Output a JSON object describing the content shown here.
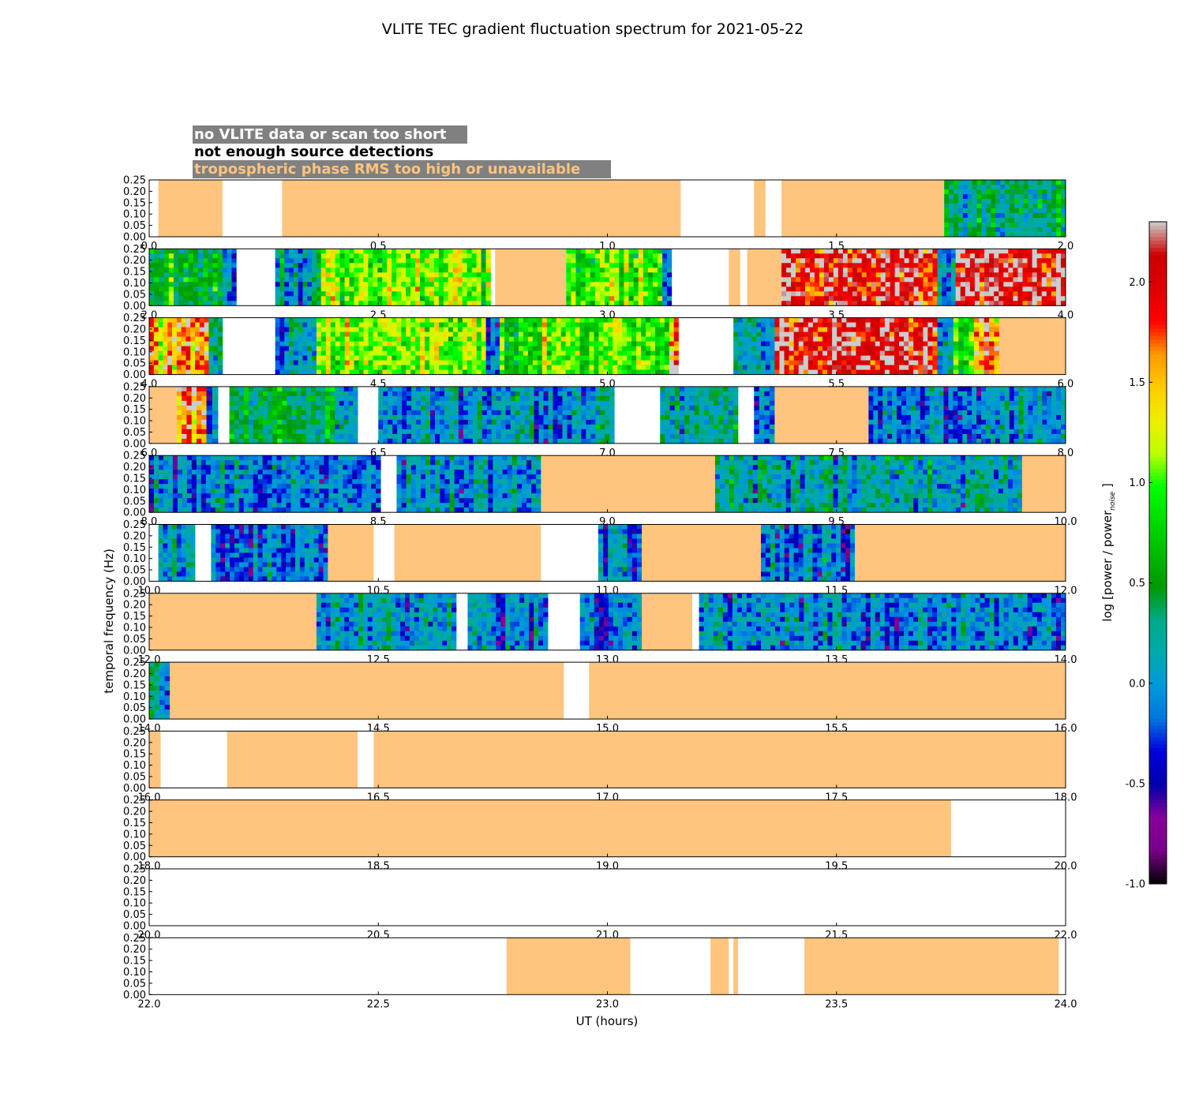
{
  "chart_data": {
    "type": "heatmap",
    "title": "VLITE TEC gradient fluctuation spectrum for 2021-05-22",
    "xlabel": "UT (hours)",
    "ylabel": "temporal frequency (Hz)",
    "colorbar": {
      "label": "log [power / power",
      "label_sub": "noise",
      "label_end": "]",
      "range": [
        -1.0,
        2.3
      ],
      "ticks": [
        "-1.0",
        "-0.5",
        "0.0",
        "0.5",
        "1.0",
        "1.5",
        "2.0"
      ],
      "tick_values": [
        -1.0,
        -0.5,
        0.0,
        0.5,
        1.0,
        1.5,
        2.0
      ],
      "colormap": "nipy_spectral"
    },
    "legend": [
      {
        "text": "no VLITE data or scan too short",
        "color": "#ffffff"
      },
      {
        "text": "not enough source detections",
        "color": "#000000"
      },
      {
        "text": "tropospheric phase RMS too high or unavailable",
        "color": "#ffc47e"
      }
    ],
    "legend_placement": "top-left",
    "legend_bg": "#808080",
    "flag_color": "#ffc47e",
    "yrange": [
      0.0,
      0.25
    ],
    "yticks": [
      "0.00",
      "0.05",
      "0.10",
      "0.15",
      "0.20",
      "0.25"
    ],
    "panels": [
      {
        "xrange": [
          0.0,
          2.0
        ],
        "xticks": [
          "0.0",
          "0.5",
          "1.0",
          "1.5",
          "2.0"
        ],
        "segments": [
          {
            "start": 0.0,
            "end": 0.02,
            "kind": "none"
          },
          {
            "start": 0.02,
            "end": 0.16,
            "kind": "tropo"
          },
          {
            "start": 0.16,
            "end": 0.29,
            "kind": "none"
          },
          {
            "start": 0.29,
            "end": 1.16,
            "kind": "tropo"
          },
          {
            "start": 1.16,
            "end": 1.32,
            "kind": "none"
          },
          {
            "start": 1.32,
            "end": 1.345,
            "kind": "tropo"
          },
          {
            "start": 1.345,
            "end": 1.38,
            "kind": "none"
          },
          {
            "start": 1.38,
            "end": 1.735,
            "kind": "tropo"
          },
          {
            "start": 1.735,
            "end": 2.0,
            "kind": "data",
            "level": 0.3
          }
        ]
      },
      {
        "xrange": [
          2.0,
          4.0
        ],
        "xticks": [
          "2.0",
          "2.5",
          "3.0",
          "3.5",
          "4.0"
        ],
        "segments": [
          {
            "start": 2.0,
            "end": 2.16,
            "kind": "data",
            "level": 0.65
          },
          {
            "start": 2.16,
            "end": 2.19,
            "kind": "data",
            "level": 0.05
          },
          {
            "start": 2.19,
            "end": 2.275,
            "kind": "none"
          },
          {
            "start": 2.275,
            "end": 2.375,
            "kind": "data",
            "level": 0.05
          },
          {
            "start": 2.375,
            "end": 2.745,
            "kind": "data",
            "level": 1.05
          },
          {
            "start": 2.745,
            "end": 2.755,
            "kind": "none"
          },
          {
            "start": 2.755,
            "end": 2.91,
            "kind": "tropo"
          },
          {
            "start": 2.91,
            "end": 3.12,
            "kind": "data",
            "level": 1.0
          },
          {
            "start": 3.12,
            "end": 3.14,
            "kind": "data",
            "level": 0.05
          },
          {
            "start": 3.14,
            "end": 3.265,
            "kind": "none"
          },
          {
            "start": 3.265,
            "end": 3.29,
            "kind": "tropo"
          },
          {
            "start": 3.29,
            "end": 3.305,
            "kind": "none"
          },
          {
            "start": 3.305,
            "end": 3.38,
            "kind": "tropo"
          },
          {
            "start": 3.38,
            "end": 3.72,
            "kind": "data",
            "level": 1.95
          },
          {
            "start": 3.72,
            "end": 3.76,
            "kind": "data",
            "level": 0.1
          },
          {
            "start": 3.76,
            "end": 4.0,
            "kind": "data",
            "level": 2.0
          }
        ]
      },
      {
        "xrange": [
          4.0,
          6.0
        ],
        "xticks": [
          "4.0",
          "4.5",
          "5.0",
          "5.5",
          "6.0"
        ],
        "segments": [
          {
            "start": 4.0,
            "end": 4.13,
            "kind": "data",
            "level": 1.6
          },
          {
            "start": 4.13,
            "end": 4.16,
            "kind": "data",
            "level": 0.05
          },
          {
            "start": 4.16,
            "end": 4.275,
            "kind": "none"
          },
          {
            "start": 4.275,
            "end": 4.365,
            "kind": "data",
            "level": 0.0
          },
          {
            "start": 4.365,
            "end": 4.735,
            "kind": "data",
            "level": 1.1
          },
          {
            "start": 4.735,
            "end": 4.765,
            "kind": "data",
            "level": 0.0
          },
          {
            "start": 4.765,
            "end": 5.135,
            "kind": "data",
            "level": 0.95
          },
          {
            "start": 5.135,
            "end": 5.155,
            "kind": "data",
            "level": 1.6
          },
          {
            "start": 5.155,
            "end": 5.275,
            "kind": "none"
          },
          {
            "start": 5.275,
            "end": 5.365,
            "kind": "data",
            "level": 0.05
          },
          {
            "start": 5.365,
            "end": 5.72,
            "kind": "data",
            "level": 2.0
          },
          {
            "start": 5.72,
            "end": 5.755,
            "kind": "data",
            "level": 0.1
          },
          {
            "start": 5.755,
            "end": 5.8,
            "kind": "data",
            "level": 0.9
          },
          {
            "start": 5.8,
            "end": 5.855,
            "kind": "data",
            "level": 1.7
          },
          {
            "start": 5.855,
            "end": 6.0,
            "kind": "tropo"
          }
        ]
      },
      {
        "xrange": [
          6.0,
          8.0
        ],
        "xticks": [
          "6.0",
          "6.5",
          "7.0",
          "7.5",
          "8.0"
        ],
        "segments": [
          {
            "start": 6.0,
            "end": 6.06,
            "kind": "tropo"
          },
          {
            "start": 6.06,
            "end": 6.125,
            "kind": "data",
            "level": 1.6
          },
          {
            "start": 6.125,
            "end": 6.15,
            "kind": "data",
            "level": 0.05
          },
          {
            "start": 6.15,
            "end": 6.175,
            "kind": "none"
          },
          {
            "start": 6.175,
            "end": 6.405,
            "kind": "data",
            "level": 0.45
          },
          {
            "start": 6.405,
            "end": 6.455,
            "kind": "data",
            "level": 0.1
          },
          {
            "start": 6.455,
            "end": 6.5,
            "kind": "none"
          },
          {
            "start": 6.5,
            "end": 7.015,
            "kind": "data",
            "level": 0.05
          },
          {
            "start": 7.015,
            "end": 7.115,
            "kind": "none"
          },
          {
            "start": 7.115,
            "end": 7.285,
            "kind": "data",
            "level": 0.2
          },
          {
            "start": 7.285,
            "end": 7.32,
            "kind": "none"
          },
          {
            "start": 7.32,
            "end": 7.365,
            "kind": "data",
            "level": 0.0
          },
          {
            "start": 7.365,
            "end": 7.57,
            "kind": "tropo"
          },
          {
            "start": 7.57,
            "end": 8.0,
            "kind": "data",
            "level": -0.05
          }
        ]
      },
      {
        "xrange": [
          8.0,
          10.0
        ],
        "xticks": [
          "8.0",
          "8.5",
          "9.0",
          "9.5",
          "10.0"
        ],
        "segments": [
          {
            "start": 8.0,
            "end": 8.505,
            "kind": "data",
            "level": -0.1
          },
          {
            "start": 8.505,
            "end": 8.54,
            "kind": "none"
          },
          {
            "start": 8.54,
            "end": 8.855,
            "kind": "data",
            "level": 0.05
          },
          {
            "start": 8.855,
            "end": 9.235,
            "kind": "tropo"
          },
          {
            "start": 9.235,
            "end": 9.905,
            "kind": "data",
            "level": 0.1
          },
          {
            "start": 9.905,
            "end": 10.0,
            "kind": "tropo"
          }
        ]
      },
      {
        "xrange": [
          10.0,
          12.0
        ],
        "xticks": [
          "10.0",
          "10.5",
          "11.0",
          "11.5",
          "12.0"
        ],
        "segments": [
          {
            "start": 10.0,
            "end": 10.02,
            "kind": "none"
          },
          {
            "start": 10.02,
            "end": 10.1,
            "kind": "data",
            "level": 0.0
          },
          {
            "start": 10.1,
            "end": 10.135,
            "kind": "none"
          },
          {
            "start": 10.135,
            "end": 10.39,
            "kind": "data",
            "level": -0.15
          },
          {
            "start": 10.39,
            "end": 10.49,
            "kind": "tropo"
          },
          {
            "start": 10.49,
            "end": 10.535,
            "kind": "none"
          },
          {
            "start": 10.535,
            "end": 10.855,
            "kind": "tropo"
          },
          {
            "start": 10.855,
            "end": 10.98,
            "kind": "none"
          },
          {
            "start": 10.98,
            "end": 11.075,
            "kind": "data",
            "level": -0.05
          },
          {
            "start": 11.075,
            "end": 11.335,
            "kind": "tropo"
          },
          {
            "start": 11.335,
            "end": 11.54,
            "kind": "data",
            "level": -0.1
          },
          {
            "start": 11.54,
            "end": 12.0,
            "kind": "tropo"
          }
        ]
      },
      {
        "xrange": [
          12.0,
          14.0
        ],
        "xticks": [
          "12.0",
          "12.5",
          "13.0",
          "13.5",
          "14.0"
        ],
        "segments": [
          {
            "start": 12.0,
            "end": 12.365,
            "kind": "tropo"
          },
          {
            "start": 12.365,
            "end": 12.67,
            "kind": "data",
            "level": 0.05
          },
          {
            "start": 12.67,
            "end": 12.695,
            "kind": "none"
          },
          {
            "start": 12.695,
            "end": 12.87,
            "kind": "data",
            "level": 0.0
          },
          {
            "start": 12.87,
            "end": 12.94,
            "kind": "none"
          },
          {
            "start": 12.94,
            "end": 13.075,
            "kind": "data",
            "level": -0.05
          },
          {
            "start": 13.075,
            "end": 13.185,
            "kind": "tropo"
          },
          {
            "start": 13.185,
            "end": 13.2,
            "kind": "none"
          },
          {
            "start": 13.2,
            "end": 14.0,
            "kind": "data",
            "level": -0.05
          }
        ]
      },
      {
        "xrange": [
          14.0,
          16.0
        ],
        "xticks": [
          "14.0",
          "14.5",
          "15.0",
          "15.5",
          "16.0"
        ],
        "segments": [
          {
            "start": 14.0,
            "end": 14.045,
            "kind": "data",
            "level": 0.15
          },
          {
            "start": 14.045,
            "end": 14.905,
            "kind": "tropo"
          },
          {
            "start": 14.905,
            "end": 14.96,
            "kind": "none"
          },
          {
            "start": 14.96,
            "end": 16.0,
            "kind": "tropo"
          }
        ]
      },
      {
        "xrange": [
          16.0,
          18.0
        ],
        "xticks": [
          "16.0",
          "16.5",
          "17.0",
          "17.5",
          "18.0"
        ],
        "segments": [
          {
            "start": 16.0,
            "end": 16.025,
            "kind": "tropo"
          },
          {
            "start": 16.025,
            "end": 16.17,
            "kind": "none"
          },
          {
            "start": 16.17,
            "end": 16.455,
            "kind": "tropo"
          },
          {
            "start": 16.455,
            "end": 16.49,
            "kind": "none"
          },
          {
            "start": 16.49,
            "end": 18.0,
            "kind": "tropo"
          }
        ]
      },
      {
        "xrange": [
          18.0,
          20.0
        ],
        "xticks": [
          "18.0",
          "18.5",
          "19.0",
          "19.5",
          "20.0"
        ],
        "segments": [
          {
            "start": 18.0,
            "end": 19.75,
            "kind": "tropo"
          },
          {
            "start": 19.75,
            "end": 20.0,
            "kind": "none"
          }
        ]
      },
      {
        "xrange": [
          20.0,
          22.0
        ],
        "xticks": [
          "20.0",
          "20.5",
          "21.0",
          "21.5",
          "22.0"
        ],
        "segments": [
          {
            "start": 20.0,
            "end": 22.0,
            "kind": "none"
          }
        ]
      },
      {
        "xrange": [
          22.0,
          24.0
        ],
        "xticks": [
          "22.0",
          "22.5",
          "23.0",
          "23.5",
          "24.0"
        ],
        "segments": [
          {
            "start": 22.0,
            "end": 22.78,
            "kind": "none"
          },
          {
            "start": 22.78,
            "end": 23.05,
            "kind": "tropo"
          },
          {
            "start": 23.05,
            "end": 23.225,
            "kind": "none"
          },
          {
            "start": 23.225,
            "end": 23.265,
            "kind": "tropo"
          },
          {
            "start": 23.265,
            "end": 23.275,
            "kind": "none"
          },
          {
            "start": 23.275,
            "end": 23.285,
            "kind": "tropo"
          },
          {
            "start": 23.285,
            "end": 23.43,
            "kind": "none"
          },
          {
            "start": 23.43,
            "end": 23.985,
            "kind": "tropo"
          },
          {
            "start": 23.985,
            "end": 24.0,
            "kind": "none"
          }
        ]
      }
    ]
  }
}
